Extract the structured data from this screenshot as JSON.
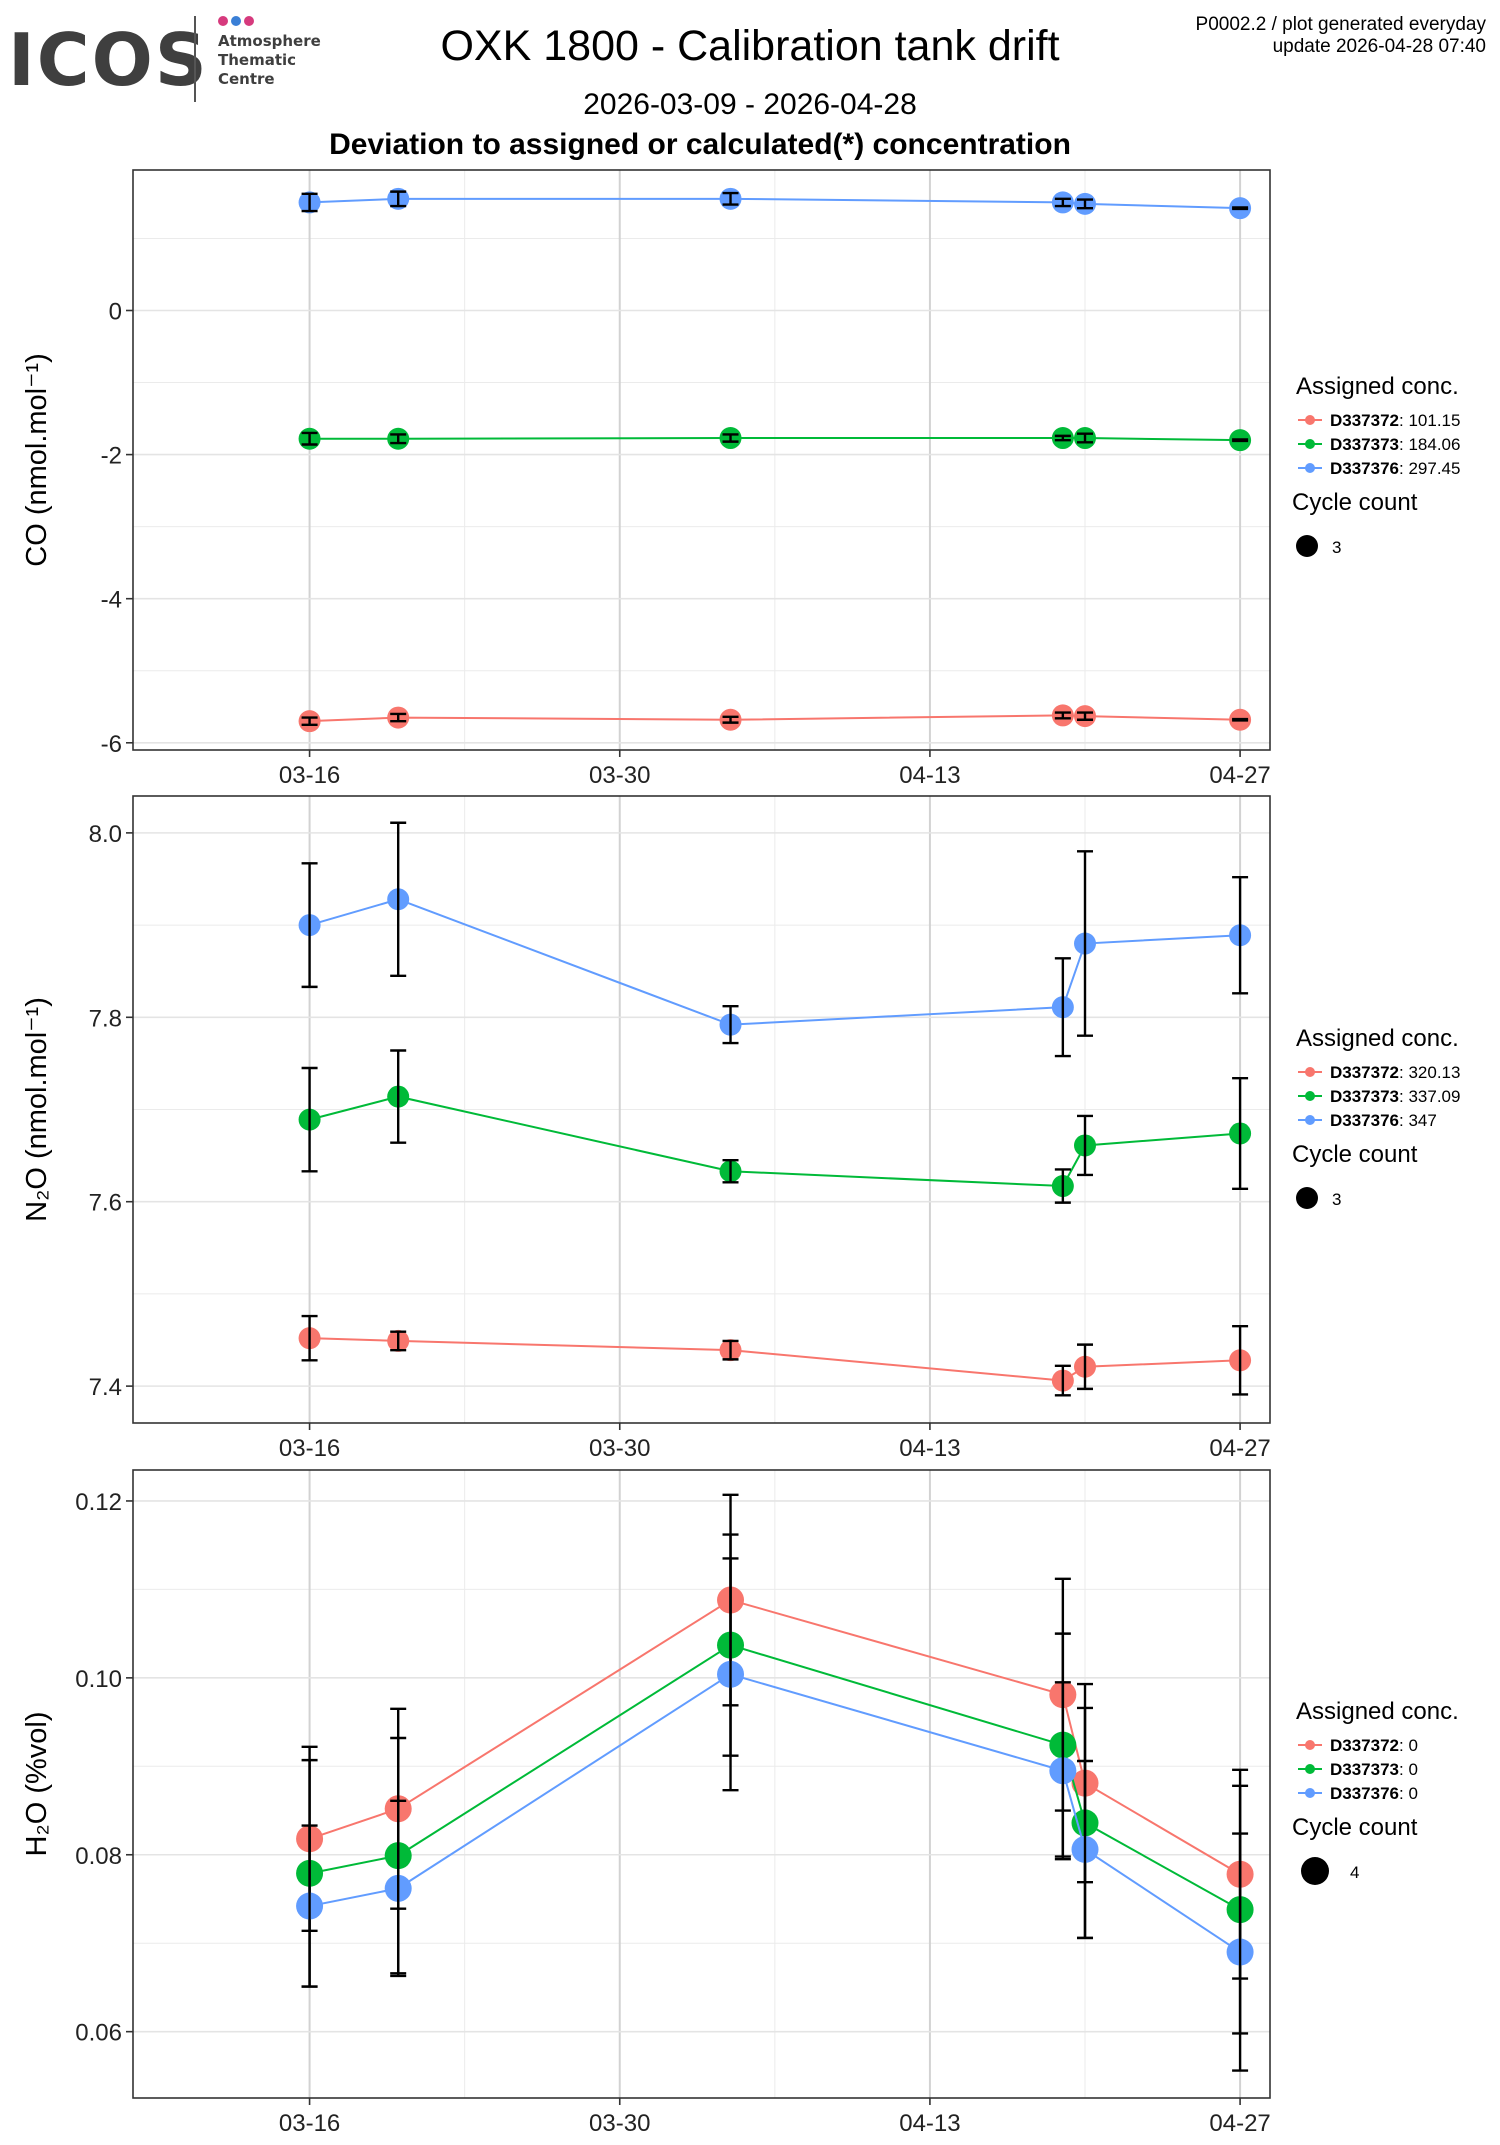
{
  "header": {
    "logo_text": "ICOS",
    "logo_subtitle": [
      "Atmosphere",
      "Thematic",
      "Centre"
    ],
    "logo_dot_colors": [
      "#d63a7d",
      "#3a7fd6",
      "#d63a7d"
    ],
    "title": "OXK 1800 - Calibration tank drift",
    "subtitle": "2026-03-09 - 2026-04-28",
    "panel_title": "Deviation to assigned or calculated(*) concentration",
    "corner_line1": "P0002.2 / plot generated everyday",
    "corner_line2": "update  2026-04-28 07:40"
  },
  "legend": {
    "assigned_title": "Assigned conc.",
    "cycle_title": "Cycle count"
  },
  "colors": {
    "D337372": "#F8766D",
    "D337373": "#00BA38",
    "D337376": "#619CFF"
  },
  "chart_data": [
    {
      "type": "scatter",
      "ylabel": "CO (nmol.mol⁻¹)",
      "ylim": [
        -6.1,
        1.95
      ],
      "yticks": [
        0,
        -2,
        -4,
        -6
      ],
      "ytick_labels": [
        "0",
        "-2",
        "-4",
        "-6"
      ],
      "x_axis": {
        "type": "date",
        "range": [
          "2026-03-09",
          "2026-04-28"
        ],
        "ticks": [
          "2026-03-16",
          "2026-03-30",
          "2026-04-13",
          "2026-04-27"
        ],
        "tick_labels": [
          "03-16",
          "03-30",
          "04-13",
          "04-27"
        ]
      },
      "grid": true,
      "cycle_count": "3",
      "x": [
        "2026-03-16",
        "2026-03-20",
        "2026-04-04",
        "2026-04-19",
        "2026-04-20",
        "2026-04-27"
      ],
      "series": [
        {
          "name": "D337372",
          "assigned": "101.15",
          "values": [
            -5.7,
            -5.65,
            -5.68,
            -5.62,
            -5.63,
            -5.68
          ],
          "errors": [
            0.05,
            0.05,
            0.04,
            0.04,
            0.05,
            0.01
          ]
        },
        {
          "name": "D337373",
          "assigned": "184.06",
          "values": [
            -1.78,
            -1.78,
            -1.77,
            -1.77,
            -1.77,
            -1.8
          ],
          "errors": [
            0.08,
            0.06,
            0.05,
            0.03,
            0.06,
            0.01
          ]
        },
        {
          "name": "D337376",
          "assigned": "297.45",
          "values": [
            1.5,
            1.55,
            1.55,
            1.5,
            1.48,
            1.42
          ],
          "errors": [
            0.12,
            0.1,
            0.08,
            0.05,
            0.06,
            0.01
          ]
        }
      ]
    },
    {
      "type": "scatter",
      "ylabel": "N₂O (nmol.mol⁻¹)",
      "ylim": [
        7.36,
        8.04
      ],
      "yticks": [
        8.0,
        7.8,
        7.6,
        7.4
      ],
      "ytick_labels": [
        "8.0",
        "7.8",
        "7.6",
        "7.4"
      ],
      "x_axis": {
        "type": "date",
        "range": [
          "2026-03-09",
          "2026-04-28"
        ],
        "ticks": [
          "2026-03-16",
          "2026-03-30",
          "2026-04-13",
          "2026-04-27"
        ],
        "tick_labels": [
          "03-16",
          "03-30",
          "04-13",
          "04-27"
        ]
      },
      "grid": true,
      "cycle_count": "3",
      "x": [
        "2026-03-16",
        "2026-03-20",
        "2026-04-04",
        "2026-04-19",
        "2026-04-20",
        "2026-04-27"
      ],
      "series": [
        {
          "name": "D337372",
          "assigned": "320.13",
          "values": [
            7.452,
            7.449,
            7.439,
            7.406,
            7.421,
            7.428
          ],
          "errors": [
            0.024,
            0.01,
            0.01,
            0.016,
            0.024,
            0.037
          ]
        },
        {
          "name": "D337373",
          "assigned": "337.09",
          "values": [
            7.689,
            7.714,
            7.633,
            7.617,
            7.661,
            7.674
          ],
          "errors": [
            0.056,
            0.05,
            0.012,
            0.018,
            0.032,
            0.06
          ]
        },
        {
          "name": "D337376",
          "assigned": "347",
          "values": [
            7.9,
            7.928,
            7.792,
            7.811,
            7.88,
            7.889
          ],
          "errors": [
            0.067,
            0.083,
            0.02,
            0.053,
            0.1,
            0.063
          ]
        }
      ]
    },
    {
      "type": "scatter",
      "ylabel": "H₂O (%vol)",
      "ylim": [
        0.0525,
        0.1235
      ],
      "yticks": [
        0.12,
        0.1,
        0.08,
        0.06
      ],
      "ytick_labels": [
        "0.12",
        "0.10",
        "0.08",
        "0.06"
      ],
      "x_axis": {
        "type": "date",
        "range": [
          "2026-03-09",
          "2026-04-28"
        ],
        "ticks": [
          "2026-03-16",
          "2026-03-30",
          "2026-04-13",
          "2026-04-27"
        ],
        "tick_labels": [
          "03-16",
          "03-30",
          "04-13",
          "04-27"
        ]
      },
      "grid": true,
      "cycle_count": "4",
      "x": [
        "2026-03-16",
        "2026-03-20",
        "2026-04-04",
        "2026-04-19",
        "2026-04-20",
        "2026-04-27"
      ],
      "series": [
        {
          "name": "D337372",
          "assigned": "0",
          "values": [
            0.0818,
            0.0852,
            0.1088,
            0.0981,
            0.0881,
            0.0778
          ],
          "errors": [
            0.0104,
            0.0113,
            0.0119,
            0.0131,
            0.0112,
            0.0118
          ]
        },
        {
          "name": "D337373",
          "assigned": "0",
          "values": [
            0.0779,
            0.0799,
            0.1037,
            0.0924,
            0.0836,
            0.0738
          ],
          "errors": [
            0.0128,
            0.0133,
            0.0125,
            0.0126,
            0.013,
            0.014
          ]
        },
        {
          "name": "D337376",
          "assigned": "0",
          "values": [
            0.0742,
            0.0762,
            0.1004,
            0.0895,
            0.0806,
            0.069
          ],
          "errors": [
            0.0091,
            0.0099,
            0.0131,
            0.01,
            0.01,
            0.0134
          ]
        }
      ]
    }
  ]
}
